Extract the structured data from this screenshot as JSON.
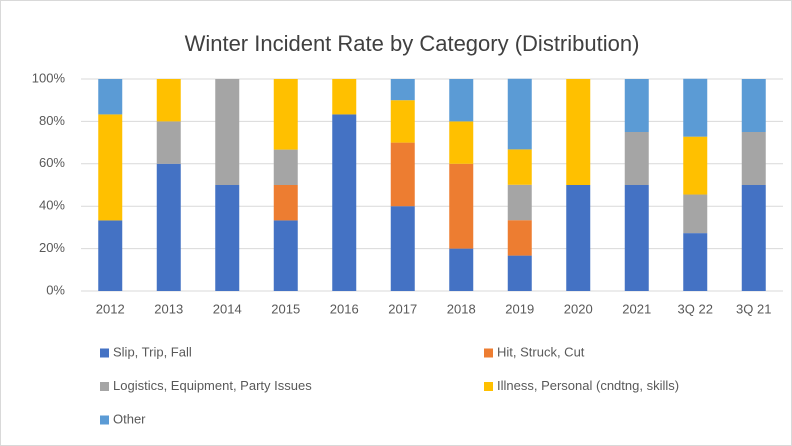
{
  "chart_data": {
    "type": "bar",
    "stacked": true,
    "title": "Winter Incident Rate by Category (Distribution)",
    "categories": [
      "2012",
      "2013",
      "2014",
      "2015",
      "2016",
      "2017",
      "2018",
      "2019",
      "2020",
      "2021",
      "3Q 22",
      "3Q 21"
    ],
    "series": [
      {
        "name": "Slip, Trip, Fall",
        "color": "#4472c4",
        "values": [
          33.3,
          60,
          50,
          33.3,
          83.3,
          40,
          20,
          16.7,
          50,
          50,
          27.3,
          50
        ]
      },
      {
        "name": "Hit, Struck, Cut",
        "color": "#ed7d31",
        "values": [
          0,
          0,
          0,
          16.7,
          0,
          30,
          40,
          16.7,
          0,
          0,
          0,
          0
        ]
      },
      {
        "name": "Logistics, Equipment, Party Issues",
        "color": "#a5a5a5",
        "values": [
          0,
          20,
          50,
          16.7,
          0,
          0,
          0,
          16.7,
          0,
          25,
          18.2,
          25
        ]
      },
      {
        "name": "Illness, Personal (cndtng, skills)",
        "color": "#ffc000",
        "values": [
          50,
          20,
          0,
          33.3,
          16.7,
          20,
          20,
          16.7,
          50,
          0,
          27.3,
          0
        ]
      },
      {
        "name": "Other",
        "color": "#5b9bd5",
        "values": [
          16.7,
          0,
          0,
          0,
          0,
          10,
          20,
          33.3,
          0,
          25,
          27.3,
          25
        ]
      }
    ],
    "ylim": [
      0,
      100
    ],
    "yticks": [
      {
        "value": 0,
        "label": "0%"
      },
      {
        "value": 20,
        "label": "20%"
      },
      {
        "value": 40,
        "label": "40%"
      },
      {
        "value": 60,
        "label": "60%"
      },
      {
        "value": 80,
        "label": "80%"
      },
      {
        "value": 100,
        "label": "100%"
      }
    ],
    "grid": true,
    "legend": "bottom"
  }
}
